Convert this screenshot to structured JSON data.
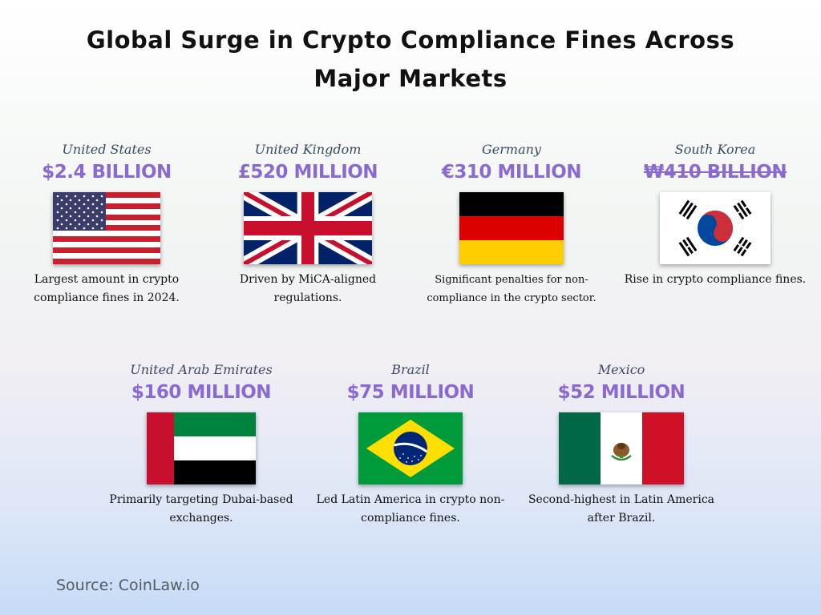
{
  "title": "Global Surge in Crypto Compliance Fines Across Major Markets",
  "cards": [
    {
      "country": "United States",
      "amount": "$2.4 BILLION",
      "flag_icon": "us-flag-icon",
      "description": "Largest amount in crypto compliance fines in 2024."
    },
    {
      "country": "United Kingdom",
      "amount": "£520 MILLION",
      "flag_icon": "uk-flag-icon",
      "description": "Driven by MiCA-aligned regulations."
    },
    {
      "country": "Germany",
      "amount": "€310 MILLION",
      "flag_icon": "germany-flag-icon",
      "description": "Significant penalties for non-compliance in the crypto sector."
    },
    {
      "country": "South Korea",
      "amount": "₩410 BILLION",
      "flag_icon": "south-korea-flag-icon",
      "description": "Rise in crypto compliance fines."
    },
    {
      "country": "United Arab Emirates",
      "amount": "$160 MILLION",
      "flag_icon": "uae-flag-icon",
      "description": "Primarily targeting Dubai-based exchanges."
    },
    {
      "country": "Brazil",
      "amount": "$75 MILLION",
      "flag_icon": "brazil-flag-icon",
      "description": "Led Latin America in crypto non-compliance fines."
    },
    {
      "country": "Mexico",
      "amount": "$52 MILLION",
      "flag_icon": "mexico-flag-icon",
      "description": "Second-highest in Latin America after Brazil."
    }
  ],
  "source": "Source: CoinLaw.io",
  "colors": {
    "amount": "#8a6ad0",
    "country": "#3a4a66",
    "title": "#111111"
  }
}
